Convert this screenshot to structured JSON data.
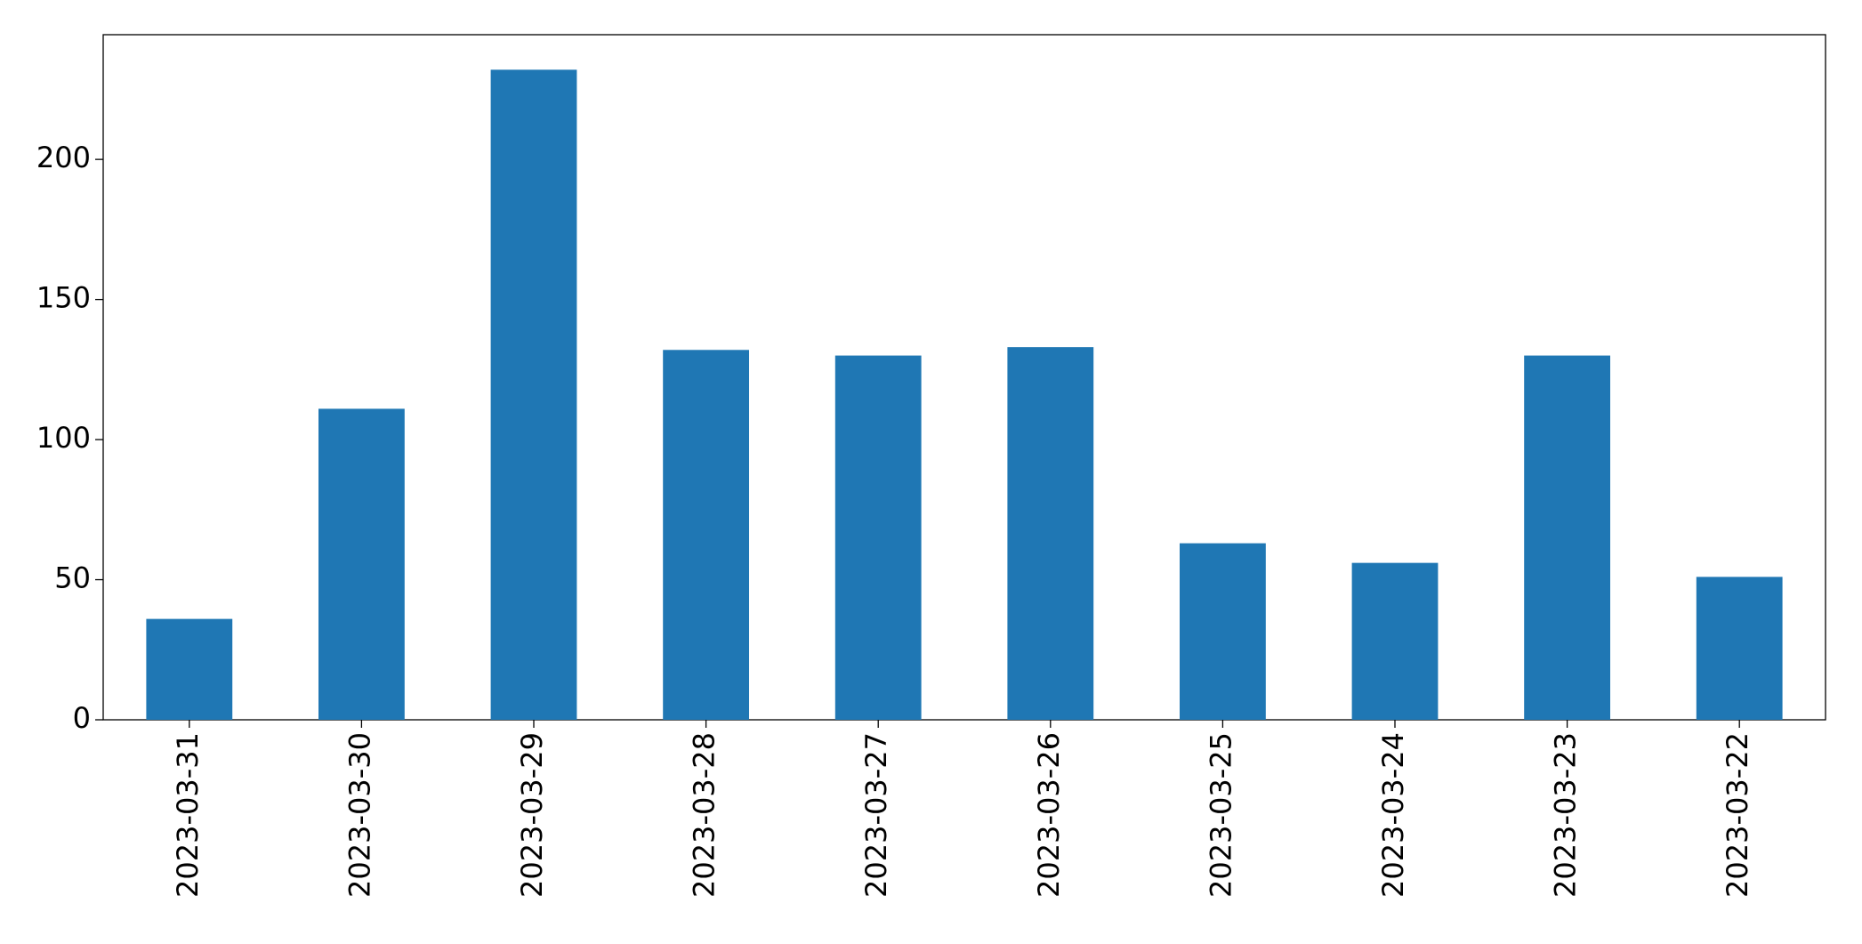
{
  "chart_data": {
    "type": "bar",
    "categories": [
      "2023-03-31",
      "2023-03-30",
      "2023-03-29",
      "2023-03-28",
      "2023-03-27",
      "2023-03-26",
      "2023-03-25",
      "2023-03-24",
      "2023-03-23",
      "2023-03-22"
    ],
    "values": [
      36,
      111,
      232,
      132,
      130,
      133,
      63,
      56,
      130,
      51
    ],
    "color": "#1f77b4",
    "ylim": [
      0,
      244.5
    ],
    "yticks": [
      0,
      50,
      100,
      150,
      200
    ],
    "grid": false
  }
}
